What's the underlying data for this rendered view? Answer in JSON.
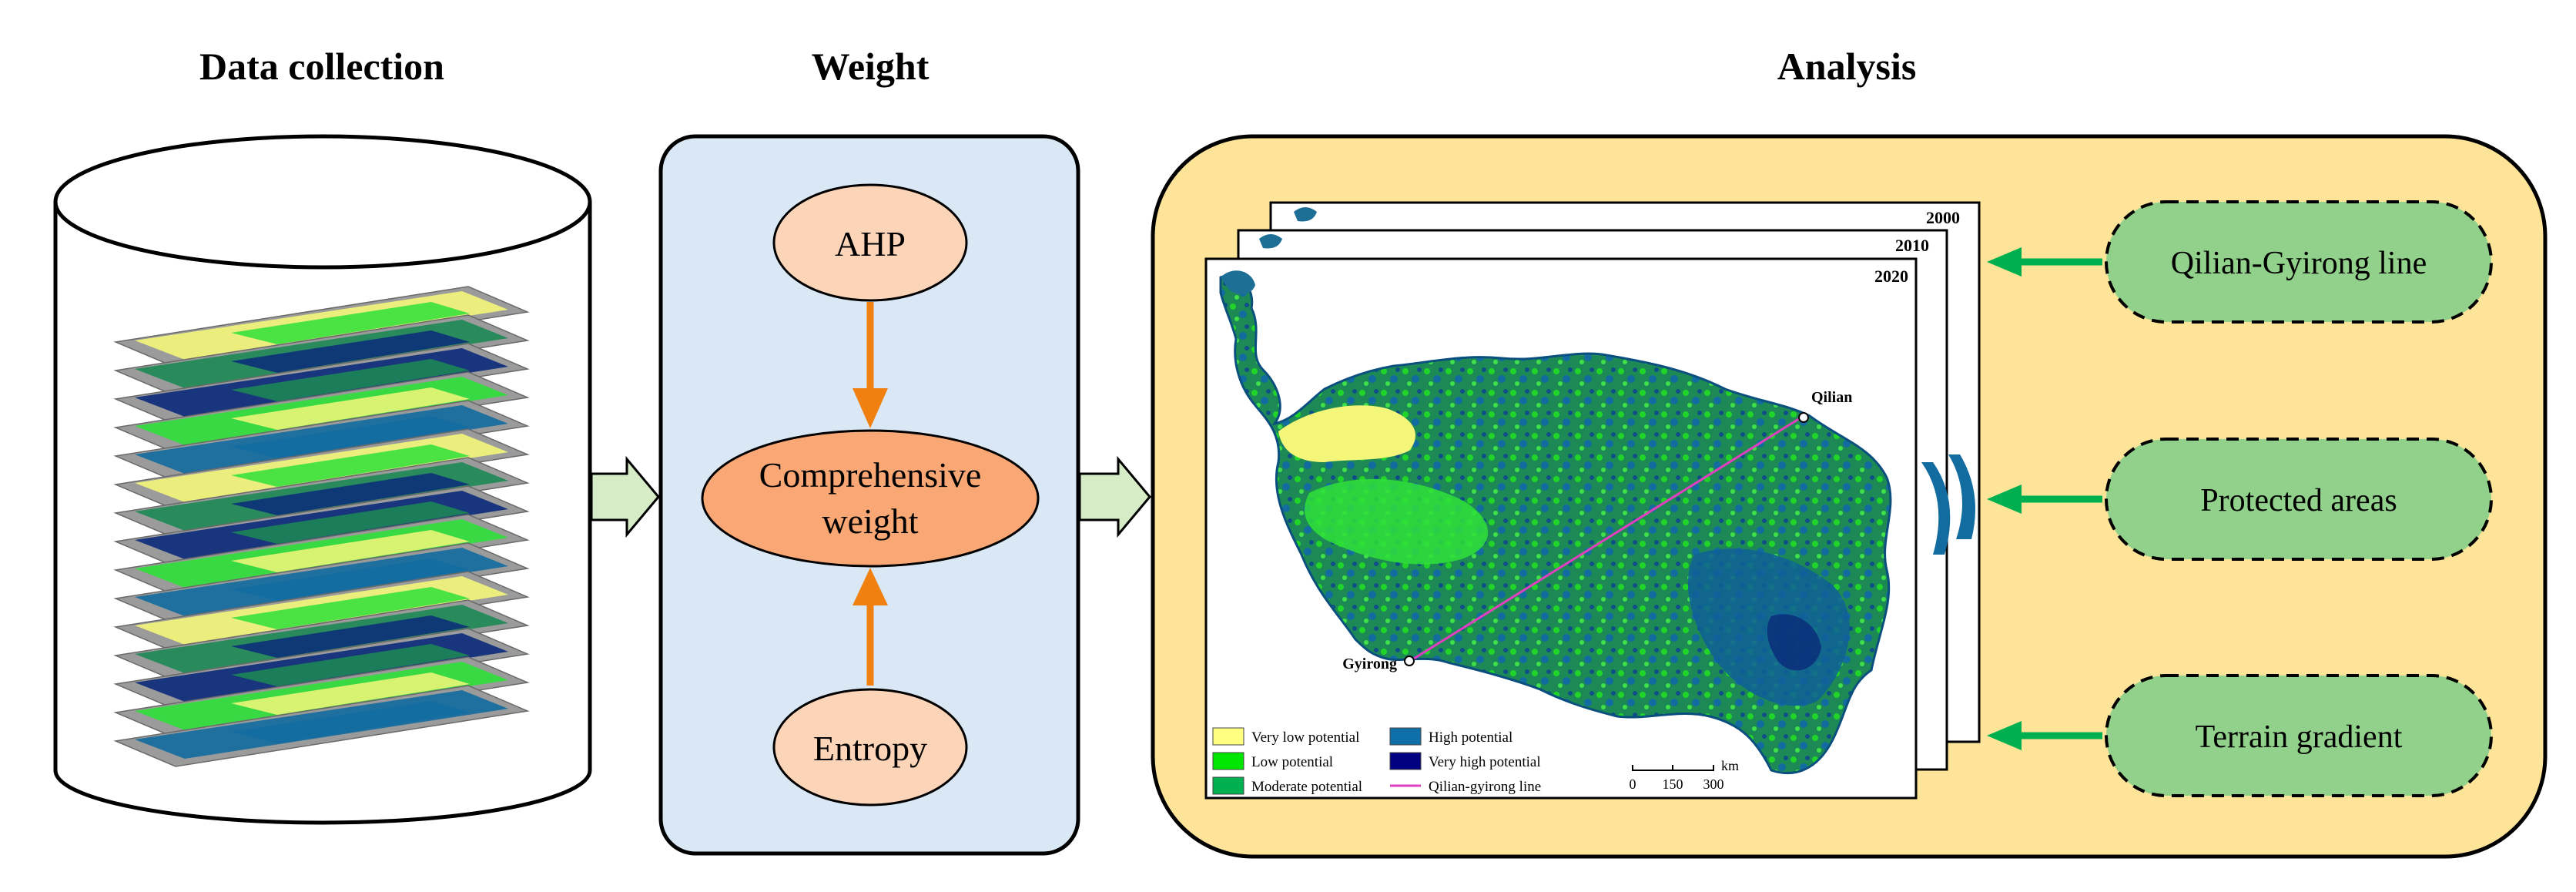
{
  "sections": {
    "data_collection": {
      "title": "Data collection"
    },
    "weight": {
      "title": "Weight",
      "nodes": {
        "ahp": "AHP",
        "comprehensive_line1": "Comprehensive",
        "comprehensive_line2": "weight",
        "entropy": "Entropy"
      }
    },
    "analysis": {
      "title": "Analysis",
      "years": [
        "2000",
        "2010",
        "2020"
      ],
      "map": {
        "cities": {
          "north": "Qilian",
          "south": "Gyirong"
        },
        "legend": [
          {
            "label": "Very low potential",
            "color": "#ffff80"
          },
          {
            "label": "Low potential",
            "color": "#00e600"
          },
          {
            "label": "Moderate potential",
            "color": "#00b050"
          },
          {
            "label": "High potential",
            "color": "#0f6fa8"
          },
          {
            "label": "Very high potential",
            "color": "#000080"
          },
          {
            "label": "Qilian-gyirong line",
            "color": "#e040c0"
          }
        ],
        "scale": {
          "ticks": [
            "0",
            "150",
            "300"
          ],
          "unit": "km"
        }
      },
      "factors": [
        "Qilian-Gyirong line",
        "Protected areas",
        "Terrain gradient"
      ]
    }
  },
  "colors": {
    "weight_panel": "#dae8f5",
    "analysis_panel": "#fde499",
    "ahp_node": "#fcd4b8",
    "comprehensive_node": "#f9a774",
    "orange_arrow": "#f08010",
    "green_arrow": "#00b050",
    "factor_pill": "#92d18b",
    "flow_arrow": "#d5ecc6"
  }
}
